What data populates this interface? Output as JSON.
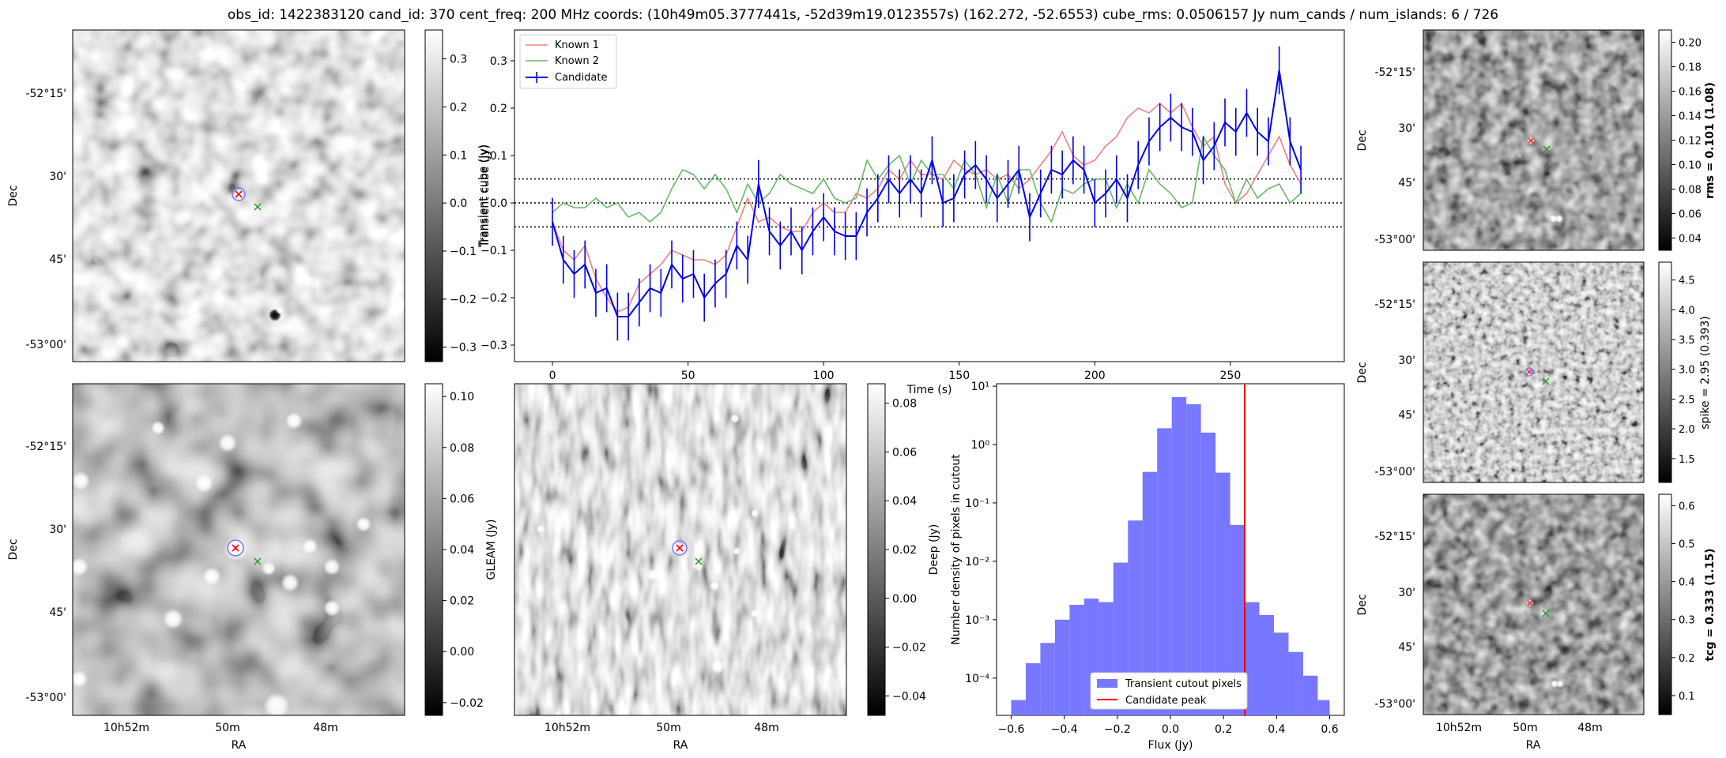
{
  "header": "obs_id: 1422383120 cand_id: 370 cent_freq: 200 MHz coords: (10h49m05.3777441s, -52d39m19.0123557s) (162.272, -52.6553) cube_rms: 0.0506157 Jy num_cands / num_islands: 6 / 726",
  "sky_axes": {
    "ra_label": "RA",
    "dec_label": "Dec",
    "ra_ticks": [
      "10h52m",
      "50m",
      "48m"
    ],
    "dec_ticks": [
      "-52°15'",
      "30'",
      "45'",
      "-53°00'"
    ]
  },
  "panels": {
    "transient_map": {
      "colorbar_label": "Transient cube (Jy)",
      "colorbar_ticks": [
        "0.3",
        "0.2",
        "0.1",
        "0.0",
        "−0.1",
        "−0.2",
        "−0.3"
      ],
      "range": [
        -0.33,
        0.36
      ]
    },
    "gleam_map": {
      "colorbar_label": "GLEAM (Jy)",
      "colorbar_ticks": [
        "0.10",
        "0.08",
        "0.06",
        "0.04",
        "0.02",
        "0.00",
        "−0.02"
      ],
      "range": [
        -0.025,
        0.105
      ]
    },
    "deep_map": {
      "colorbar_label": "Deep (Jy)",
      "colorbar_ticks": [
        "0.08",
        "0.06",
        "0.04",
        "0.02",
        "0.00",
        "−0.02",
        "−0.04"
      ],
      "range": [
        -0.048,
        0.088
      ]
    },
    "rms_map": {
      "colorbar_label": "rms = 0.101 (1.08)",
      "colorbar_ticks": [
        "0.20",
        "0.18",
        "0.16",
        "0.14",
        "0.12",
        "0.10",
        "0.08",
        "0.06",
        "0.04"
      ],
      "range": [
        0.03,
        0.21
      ]
    },
    "spike_map": {
      "colorbar_label": "spike = 2.95 (0.393)",
      "colorbar_ticks": [
        "4.5",
        "4.0",
        "3.5",
        "3.0",
        "2.5",
        "2.0",
        "1.5"
      ],
      "range": [
        1.1,
        4.8
      ]
    },
    "tcg_map": {
      "colorbar_label": "tcg = 0.333 (1.15)",
      "colorbar_ticks": [
        "0.6",
        "0.5",
        "0.4",
        "0.3",
        "0.2",
        "0.1"
      ],
      "range": [
        0.05,
        0.63
      ]
    }
  },
  "chart_data": [
    {
      "type": "line",
      "title": "",
      "xlabel": "Time (s)",
      "ylabel": "Transient cube (Jy)",
      "xlim": [
        -14,
        292
      ],
      "ylim": [
        -0.335,
        0.365
      ],
      "x_ticks": [
        0,
        50,
        100,
        150,
        200,
        250
      ],
      "y_ticks": [
        0.3,
        0.2,
        0.1,
        0.0,
        -0.1,
        -0.2,
        -0.3
      ],
      "y_tick_labels": [
        "0.3",
        "0.2",
        "0.1",
        "0.0",
        "−0.1",
        "−0.2",
        "−0.3"
      ],
      "hlines": [
        0.0506,
        0.0,
        -0.0506
      ],
      "legend": [
        "Known 1",
        "Known 2",
        "Candidate"
      ],
      "x": [
        0,
        4,
        8,
        12,
        16,
        20,
        24,
        28,
        32,
        36,
        40,
        44,
        48,
        52,
        56,
        60,
        64,
        68,
        72,
        76,
        80,
        84,
        88,
        92,
        96,
        100,
        104,
        108,
        112,
        116,
        120,
        124,
        128,
        132,
        136,
        140,
        144,
        148,
        152,
        156,
        160,
        164,
        168,
        172,
        176,
        180,
        184,
        188,
        192,
        196,
        200,
        204,
        208,
        212,
        216,
        220,
        224,
        228,
        232,
        236,
        240,
        244,
        248,
        252,
        256,
        260,
        264,
        268,
        272,
        276
      ],
      "series": [
        {
          "name": "Known 1",
          "color": "#f08080",
          "values": [
            -0.04,
            -0.1,
            -0.12,
            -0.09,
            -0.16,
            -0.2,
            -0.23,
            -0.22,
            -0.17,
            -0.15,
            -0.13,
            -0.1,
            -0.11,
            -0.12,
            -0.12,
            -0.13,
            -0.11,
            -0.05,
            0.01,
            -0.04,
            -0.03,
            -0.05,
            -0.06,
            -0.06,
            -0.02,
            0.0,
            -0.02,
            -0.02,
            0.02,
            0.01,
            0.03,
            0.07,
            0.05,
            0.09,
            0.06,
            0.06,
            0.05,
            0.09,
            0.07,
            0.06,
            0.07,
            0.05,
            0.06,
            0.03,
            0.05,
            0.08,
            0.11,
            0.15,
            0.1,
            0.08,
            0.09,
            0.12,
            0.14,
            0.18,
            0.2,
            0.19,
            0.21,
            0.19,
            0.21,
            0.16,
            0.12,
            0.14,
            0.04,
            0.0,
            0.02,
            0.06,
            0.1,
            0.14,
            0.08,
            0.04
          ]
        },
        {
          "name": "Known 2",
          "color": "#66bb66",
          "values": [
            -0.02,
            0.0,
            -0.01,
            -0.01,
            0.01,
            -0.01,
            0.0,
            -0.03,
            -0.02,
            -0.04,
            -0.02,
            0.03,
            0.07,
            0.06,
            0.03,
            0.06,
            0.03,
            -0.02,
            0.04,
            0.0,
            0.02,
            0.06,
            0.04,
            0.03,
            0.02,
            0.05,
            0.01,
            0.0,
            0.01,
            0.09,
            0.05,
            0.08,
            0.1,
            0.04,
            0.09,
            0.06,
            0.06,
            0.03,
            0.09,
            0.06,
            -0.01,
            0.06,
            0.0,
            0.07,
            0.07,
            0.0,
            -0.04,
            0.03,
            0.02,
            0.04,
            0.05,
            0.05,
            -0.01,
            0.04,
            0.0,
            0.07,
            0.04,
            0.02,
            -0.01,
            0.0,
            0.14,
            0.1,
            0.07,
            0.0,
            0.05,
            0.01,
            0.03,
            0.04,
            0.0,
            0.02
          ]
        },
        {
          "name": "Candidate",
          "color": "#0000ee",
          "values": [
            -0.04,
            -0.12,
            -0.15,
            -0.13,
            -0.19,
            -0.18,
            -0.24,
            -0.24,
            -0.21,
            -0.18,
            -0.19,
            -0.13,
            -0.16,
            -0.15,
            -0.2,
            -0.17,
            -0.15,
            -0.09,
            -0.12,
            0.04,
            -0.06,
            -0.09,
            -0.06,
            -0.1,
            -0.06,
            -0.03,
            -0.06,
            -0.07,
            -0.07,
            -0.02,
            0.01,
            0.05,
            0.02,
            0.05,
            0.02,
            0.09,
            0.0,
            0.01,
            0.06,
            0.08,
            0.05,
            0.01,
            0.04,
            0.07,
            -0.03,
            0.02,
            0.07,
            0.06,
            0.09,
            0.07,
            0.0,
            0.02,
            0.05,
            0.01,
            0.08,
            0.13,
            0.16,
            0.18,
            0.16,
            0.15,
            0.09,
            0.12,
            0.17,
            0.15,
            0.19,
            0.15,
            0.13,
            0.28,
            0.13,
            0.07
          ],
          "error": 0.0506
        }
      ]
    },
    {
      "type": "bar",
      "title": "",
      "xlabel": "Flux (Jy)",
      "ylabel": "Number density of pixels in cutout",
      "xlim": [
        -0.655,
        0.655
      ],
      "ylog": true,
      "ylim": [
        2.3e-05,
        11
      ],
      "x_ticks": [
        -0.6,
        -0.4,
        -0.2,
        0.0,
        0.2,
        0.4,
        0.6
      ],
      "x_tick_labels": [
        "−0.6",
        "−0.4",
        "−0.2",
        "0.0",
        "0.2",
        "0.4",
        "0.6"
      ],
      "y_ticks": [
        0.0001,
        0.001,
        0.01,
        0.1,
        1,
        10
      ],
      "y_tick_labels": [
        "10⁻⁴",
        "10⁻³",
        "10⁻²",
        "10⁻¹",
        "10⁰",
        "10¹"
      ],
      "bin_edges": [
        -0.6,
        -0.545,
        -0.49,
        -0.435,
        -0.38,
        -0.325,
        -0.27,
        -0.215,
        -0.16,
        -0.105,
        -0.05,
        0.005,
        0.06,
        0.115,
        0.17,
        0.225,
        0.28,
        0.335,
        0.39,
        0.445,
        0.5,
        0.555,
        0.6
      ],
      "values": [
        4.2e-05,
        0.00018,
        0.0004,
        0.001,
        0.0018,
        0.0023,
        0.002,
        0.0095,
        0.05,
        0.34,
        1.9,
        6.5,
        4.9,
        1.6,
        0.33,
        0.042,
        0.002,
        0.0012,
        0.0006,
        0.00028,
        0.00011,
        4.2e-05
      ],
      "vline": 0.28,
      "legend": [
        "Transient cutout pixels",
        "Candidate peak"
      ],
      "bar_color": "#7777ff",
      "vline_color": "#ee0000"
    }
  ]
}
